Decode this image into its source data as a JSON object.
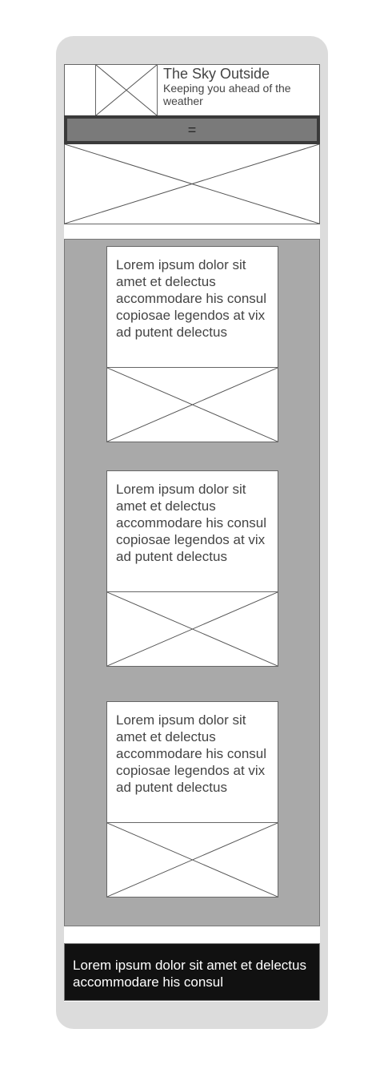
{
  "header": {
    "title": "The Sky Outside",
    "tagline": "Keeping you ahead of the weather",
    "logo_icon": "image-placeholder-icon"
  },
  "menu": {
    "toggle_label": "=",
    "toggle_icon": "hamburger-menu-icon"
  },
  "hero": {
    "icon": "image-placeholder-icon"
  },
  "cards": [
    {
      "text": "Lorem ipsum dolor sit amet et delectus accommodare his consul copiosae legendos at vix ad putent delectus",
      "image_icon": "image-placeholder-icon"
    },
    {
      "text": "Lorem ipsum dolor sit amet et delectus accommodare his consul copiosae legendos at vix ad putent delectus",
      "image_icon": "image-placeholder-icon"
    },
    {
      "text": "Lorem ipsum dolor sit amet et delectus accommodare his consul copiosae legendos at vix ad putent delectus",
      "image_icon": "image-placeholder-icon"
    }
  ],
  "footer": {
    "text": "Lorem ipsum dolor sit amet et delectus accommodare his consul"
  },
  "colors": {
    "phone_frame": "#dcdcdc",
    "menu_bar": "#3a3a3a",
    "menu_button": "#7a7a7a",
    "content_background": "#a9a9a9",
    "footer_background": "#111111"
  }
}
